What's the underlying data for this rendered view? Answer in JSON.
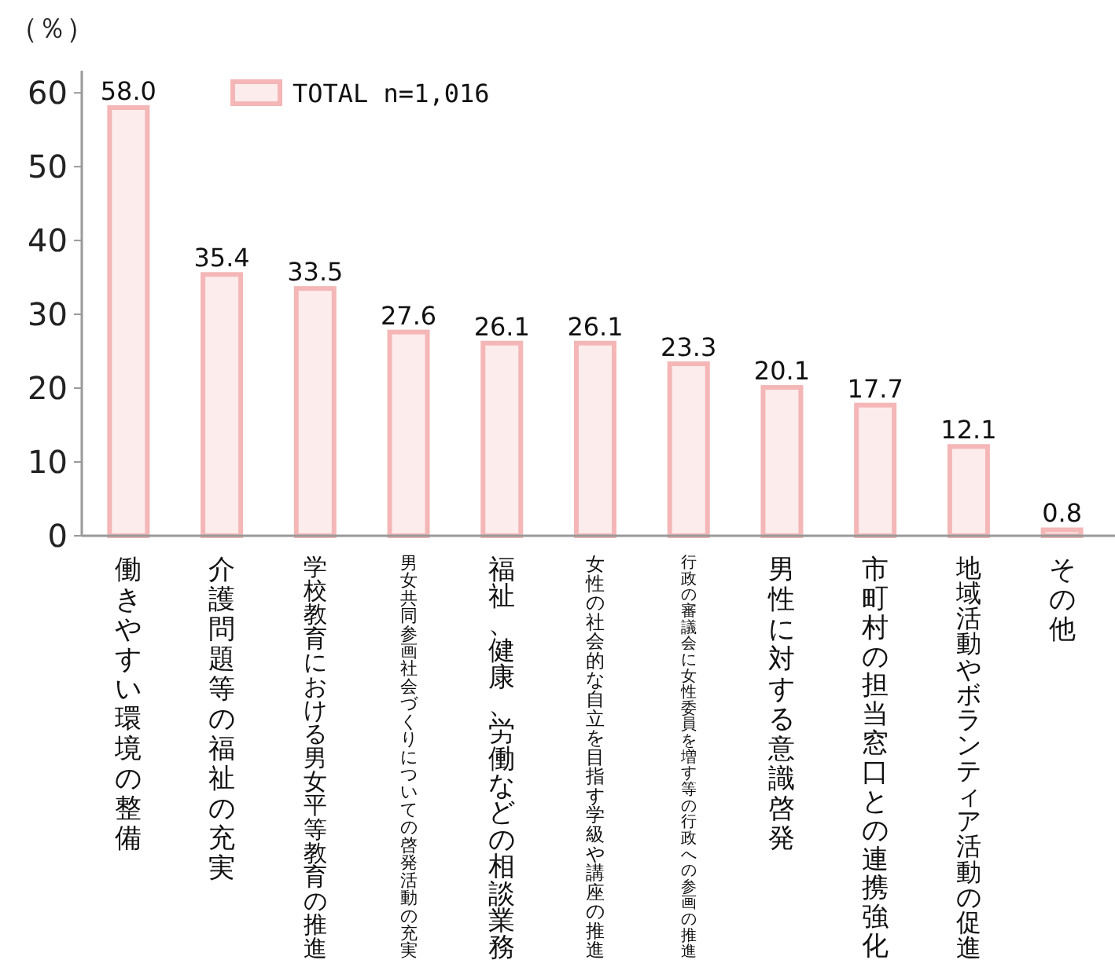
{
  "chart_data": {
    "type": "bar",
    "ylabel": "（％）",
    "categories": [
      "働きやすい環境の整備",
      "介護問題等の福祉の充実",
      "学校教育における男女平等教育の推進",
      "男女共同参画社会づくりについての啓発活動の充実",
      "福祉、健康、労働などの相談業務",
      "女性の社会的な自立を目指す学級や講座の推進",
      "行政の審議会に女性委員を増す等の行政への参画の推進",
      "男性に対する意識啓発",
      "市町村の担当窓口との連携強化",
      "地域活動やボランティア活動の促進",
      "その他"
    ],
    "series": [
      {
        "name": "TOTAL n=1,016",
        "color": "#f4b6b6",
        "values": [
          58.0,
          35.4,
          33.5,
          27.6,
          26.1,
          26.1,
          23.3,
          20.1,
          17.7,
          12.1,
          0.8
        ],
        "value_labels": [
          "58.0",
          "35.4",
          "33.5",
          "27.6",
          "26.1",
          "26.1",
          "23.3",
          "20.1",
          "17.7",
          "12.1",
          "0.8"
        ]
      }
    ],
    "ylim": [
      0,
      63
    ],
    "yticks": [
      0,
      10,
      20,
      30,
      40,
      50,
      60
    ],
    "legend": "top left",
    "grid": false
  }
}
